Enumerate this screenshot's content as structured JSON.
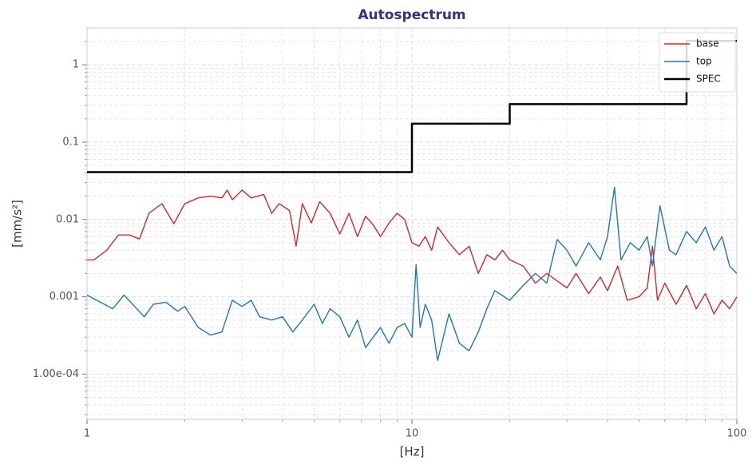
{
  "chart_data": {
    "type": "line",
    "title": "Autospectrum",
    "xlabel": "[Hz]",
    "ylabel": "[mm/s²]",
    "xscale": "log",
    "yscale": "log",
    "xlim": [
      1,
      100
    ],
    "ylim": [
      2.6e-05,
      3.0
    ],
    "xticks": [
      1,
      10,
      100
    ],
    "yticks": [
      1,
      0.1,
      0.01,
      0.001,
      {
        "value": 0.0001,
        "label": "1.00e-04"
      }
    ],
    "grid": true,
    "legend": "upper right",
    "series": [
      {
        "name": "base",
        "color": "#d62728",
        "x": [
          1,
          1.05,
          1.15,
          1.25,
          1.35,
          1.45,
          1.55,
          1.7,
          1.85,
          2.0,
          2.2,
          2.4,
          2.6,
          2.7,
          2.8,
          3.0,
          3.2,
          3.5,
          3.7,
          3.9,
          4.2,
          4.4,
          4.6,
          4.9,
          5.2,
          5.6,
          6.0,
          6.4,
          6.8,
          7.2,
          7.6,
          8.0,
          8.5,
          9.0,
          9.5,
          10,
          10.5,
          11,
          11.5,
          12,
          13,
          14,
          15,
          16,
          17,
          18,
          19,
          20,
          22,
          24,
          26,
          28,
          30,
          32,
          35,
          38,
          40,
          43,
          46,
          50,
          53,
          55,
          57,
          60,
          65,
          70,
          75,
          80,
          85,
          90,
          95,
          100
        ],
        "values": [
          0.003,
          0.003,
          0.004,
          0.0063,
          0.0063,
          0.0056,
          0.012,
          0.016,
          0.0088,
          0.016,
          0.019,
          0.02,
          0.019,
          0.024,
          0.018,
          0.024,
          0.019,
          0.021,
          0.012,
          0.016,
          0.013,
          0.0045,
          0.016,
          0.009,
          0.017,
          0.012,
          0.0065,
          0.012,
          0.006,
          0.011,
          0.0085,
          0.006,
          0.009,
          0.012,
          0.01,
          0.005,
          0.0045,
          0.006,
          0.004,
          0.008,
          0.005,
          0.0035,
          0.0045,
          0.002,
          0.0035,
          0.003,
          0.004,
          0.003,
          0.0025,
          0.0015,
          0.002,
          0.0016,
          0.0013,
          0.002,
          0.0011,
          0.0018,
          0.0012,
          0.0025,
          0.0009,
          0.001,
          0.0013,
          0.0045,
          0.0009,
          0.0015,
          0.0008,
          0.0014,
          0.0007,
          0.0011,
          0.0006,
          0.0009,
          0.0007,
          0.001
        ]
      },
      {
        "name": "top",
        "color": "#1f77b4",
        "x": [
          1,
          1.2,
          1.3,
          1.5,
          1.6,
          1.75,
          1.9,
          2.0,
          2.2,
          2.4,
          2.6,
          2.8,
          3.0,
          3.2,
          3.4,
          3.7,
          4.0,
          4.3,
          4.6,
          5.0,
          5.3,
          5.6,
          6.0,
          6.4,
          6.8,
          7.2,
          7.6,
          8.0,
          8.5,
          9.0,
          9.5,
          10,
          10.3,
          10.6,
          11,
          11.5,
          12,
          13,
          14,
          15,
          16,
          17,
          18,
          20,
          22,
          24,
          26,
          28,
          30,
          32,
          35,
          38,
          40,
          42,
          44,
          47,
          50,
          53,
          55,
          58,
          62,
          65,
          70,
          75,
          80,
          85,
          90,
          95,
          100
        ],
        "values": [
          0.00105,
          0.0007,
          0.00105,
          0.00055,
          0.0008,
          0.00085,
          0.00065,
          0.00075,
          0.0004,
          0.00032,
          0.00035,
          0.0009,
          0.00075,
          0.0009,
          0.00055,
          0.0005,
          0.00055,
          0.00035,
          0.0005,
          0.0008,
          0.00045,
          0.0007,
          0.00055,
          0.0003,
          0.0005,
          0.00022,
          0.0003,
          0.0004,
          0.00025,
          0.0004,
          0.00045,
          0.0003,
          0.0026,
          0.0004,
          0.0008,
          0.0005,
          0.00015,
          0.0006,
          0.00025,
          0.0002,
          0.00035,
          0.0007,
          0.0012,
          0.0009,
          0.0014,
          0.002,
          0.0015,
          0.0055,
          0.004,
          0.0025,
          0.005,
          0.003,
          0.006,
          0.026,
          0.003,
          0.005,
          0.004,
          0.006,
          0.0025,
          0.015,
          0.004,
          0.0035,
          0.007,
          0.005,
          0.008,
          0.004,
          0.006,
          0.0025,
          0.002
        ]
      },
      {
        "name": "SPEC",
        "color": "#000000",
        "x": [
          1,
          10,
          10,
          20,
          20,
          70,
          70,
          100
        ],
        "values": [
          0.041,
          0.041,
          0.173,
          0.173,
          0.31,
          0.31,
          2.04,
          2.04
        ]
      }
    ]
  }
}
